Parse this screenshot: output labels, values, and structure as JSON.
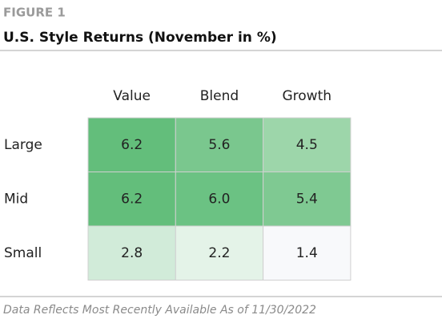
{
  "chart_data": {
    "type": "heatmap",
    "figure_label": "FIGURE 1",
    "title": "U.S. Style Returns (November in %)",
    "columns": [
      "Value",
      "Blend",
      "Growth"
    ],
    "rows": [
      "Large",
      "Mid",
      "Small"
    ],
    "values": [
      [
        6.2,
        5.6,
        4.5
      ],
      [
        6.2,
        6.0,
        5.4
      ],
      [
        2.8,
        2.2,
        1.4
      ]
    ],
    "value_labels": [
      [
        "6.2",
        "5.6",
        "4.5"
      ],
      [
        "6.2",
        "6.0",
        "5.4"
      ],
      [
        "2.8",
        "2.2",
        "1.4"
      ]
    ],
    "colors": [
      [
        "#63be7b",
        "#7ac78e",
        "#9dd6aa"
      ],
      [
        "#63be7b",
        "#6bc283",
        "#7fc992"
      ],
      [
        "#d1ebd9",
        "#e4f3e8",
        "#f8f9fb"
      ]
    ],
    "footnote": "Data Reflects Most Recently Available As of 11/30/2022"
  }
}
